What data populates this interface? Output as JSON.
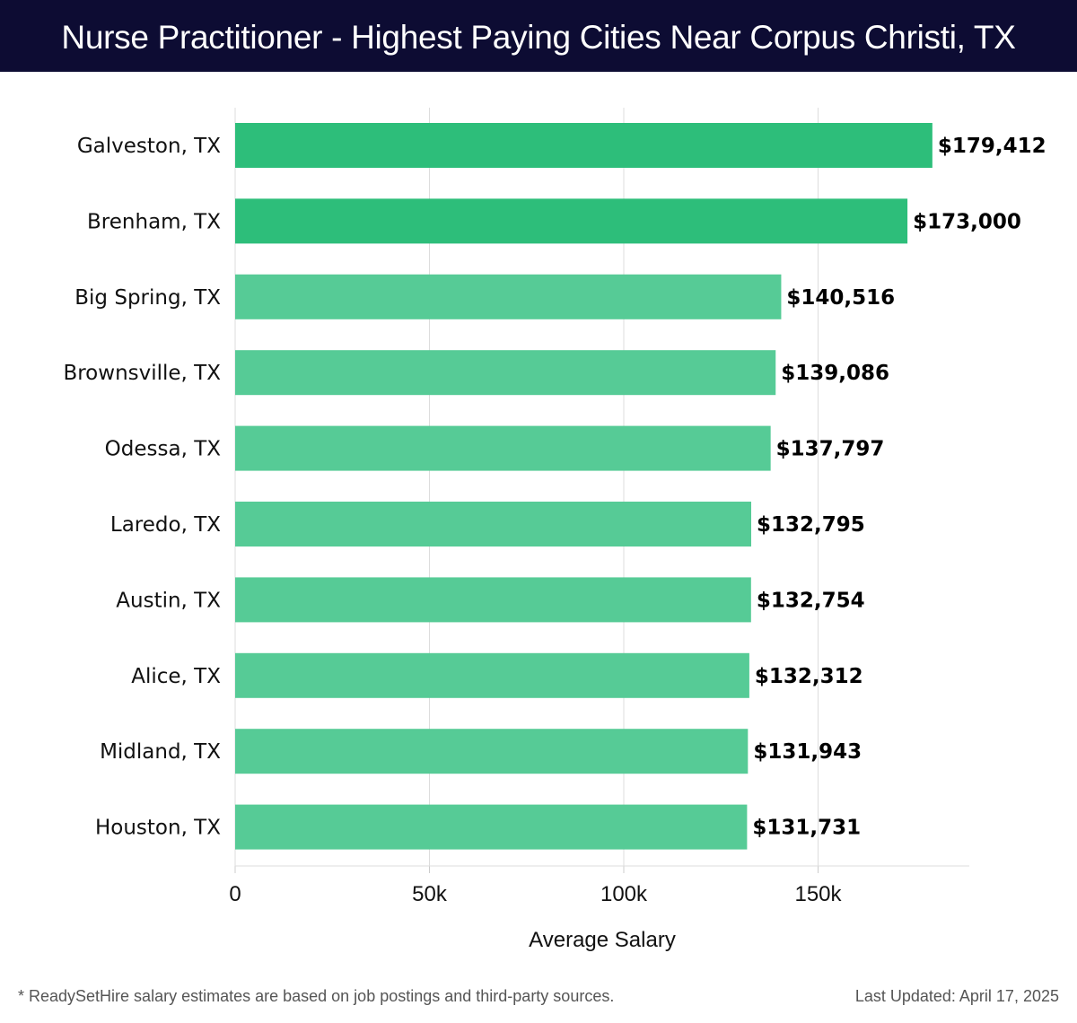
{
  "header": {
    "title": "Nurse Practitioner - Highest Paying Cities Near Corpus Christi, TX"
  },
  "footer": {
    "note": "* ReadySetHire salary estimates are based on job postings and third-party sources.",
    "updated": "Last Updated: April 17, 2025"
  },
  "colors": {
    "header_bg": "#0d0c33",
    "bar_highlight": "#2dbe7a",
    "bar_default": "#56cb96",
    "grid": "#dddddd"
  },
  "chart_data": {
    "type": "bar",
    "orientation": "horizontal",
    "title": "Nurse Practitioner - Highest Paying Cities Near Corpus Christi, TX",
    "xlabel": "Average Salary",
    "ylabel": "",
    "xlim": [
      0,
      189000
    ],
    "grid": true,
    "x_ticks": [
      {
        "value": 0,
        "label": "0"
      },
      {
        "value": 50000,
        "label": "50k"
      },
      {
        "value": 100000,
        "label": "100k"
      },
      {
        "value": 150000,
        "label": "150k"
      }
    ],
    "categories": [
      "Galveston, TX",
      "Brenham, TX",
      "Big Spring, TX",
      "Brownsville, TX",
      "Odessa, TX",
      "Laredo, TX",
      "Austin, TX",
      "Alice, TX",
      "Midland, TX",
      "Houston, TX"
    ],
    "values": [
      179412,
      173000,
      140516,
      139086,
      137797,
      132795,
      132754,
      132312,
      131943,
      131731
    ],
    "value_labels": [
      "$179,412",
      "$173,000",
      "$140,516",
      "$139,086",
      "$137,797",
      "$132,795",
      "$132,754",
      "$132,312",
      "$131,943",
      "$131,731"
    ],
    "highlighted": [
      true,
      true,
      false,
      false,
      false,
      false,
      false,
      false,
      false,
      false
    ]
  }
}
